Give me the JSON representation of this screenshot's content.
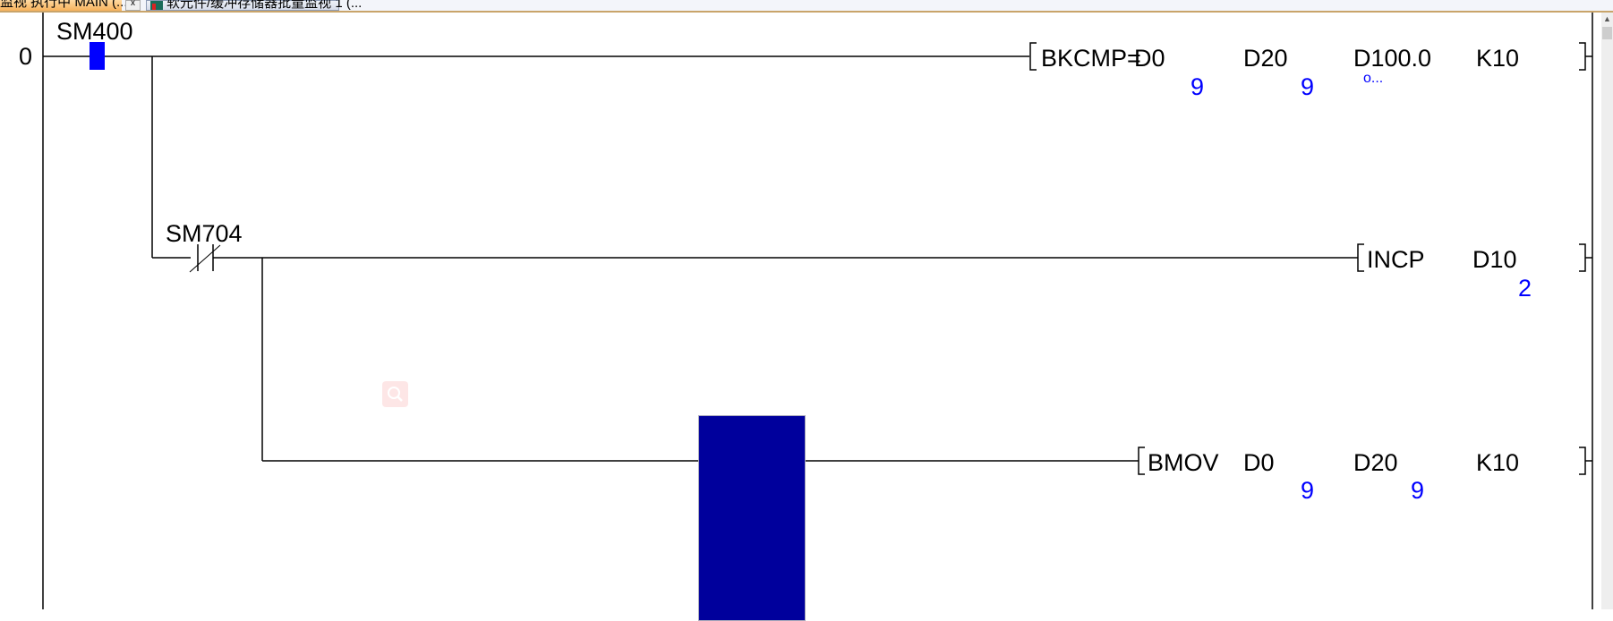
{
  "tabs": [
    {
      "label": "监视 执行中 MAIN (...",
      "active": true
    },
    {
      "label": "软元件/缓冲存储器批量监视 1 (...",
      "active": false
    }
  ],
  "tab_close_label": "x",
  "ladder": {
    "step_number": "0",
    "rungs": [
      {
        "contact": {
          "device": "SM400",
          "type": "normally-open",
          "state": "on"
        },
        "instruction": {
          "mnemonic": "BKCMP=",
          "operands": [
            "D0",
            "D20",
            "D100.0",
            "K10"
          ],
          "monitor_values": [
            "9",
            "9",
            "o..."
          ]
        }
      },
      {
        "contact": {
          "device": "SM704",
          "type": "normally-closed"
        },
        "instruction": {
          "mnemonic": "INCP",
          "operands": [
            "D10"
          ],
          "monitor_values": [
            "2"
          ]
        }
      },
      {
        "instruction": {
          "mnemonic": "BMOV",
          "operands": [
            "D0",
            "D20",
            "K10"
          ],
          "monitor_values": [
            "9",
            "9"
          ]
        }
      }
    ]
  },
  "colors": {
    "monitor_value": "#0000ff",
    "contact_on": "#0000ff",
    "cursor": "#00009c",
    "active_tab": "#f7b25c"
  }
}
